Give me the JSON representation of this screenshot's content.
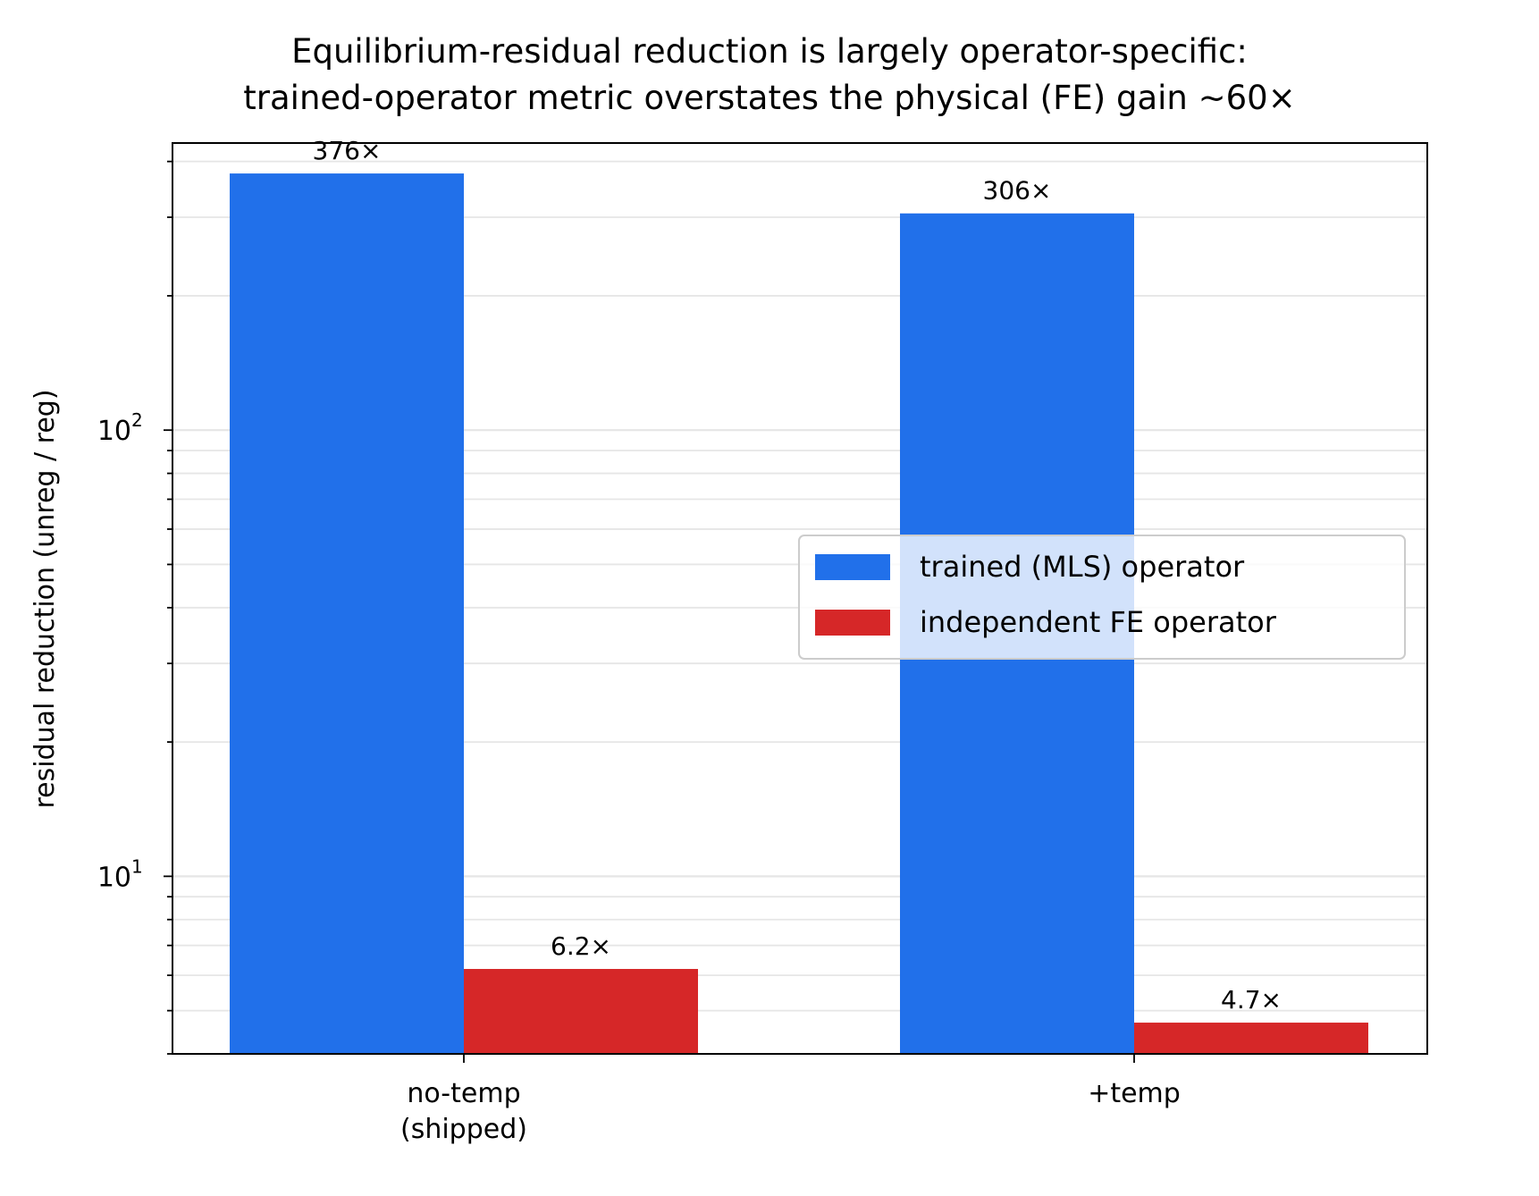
{
  "chart_data": {
    "type": "bar",
    "title_lines": [
      "Equilibrium-residual reduction is largely operator-specific:",
      "trained-operator metric overstates the physical (FE) gain ~60×"
    ],
    "ylabel": "residual reduction  (unreg / reg)",
    "xlabel": "",
    "yscale": "log",
    "ylim": [
      4,
      440
    ],
    "y_major_ticks": [
      {
        "value": 10,
        "base": "10",
        "exp": "1"
      },
      {
        "value": 100,
        "base": "10",
        "exp": "2"
      }
    ],
    "categories": [
      [
        "no-temp",
        "(shipped)"
      ],
      [
        "+temp"
      ]
    ],
    "series": [
      {
        "name": "trained (MLS) operator",
        "color": "#2170ea",
        "values": [
          376,
          306
        ],
        "labels": [
          "376×",
          "306×"
        ]
      },
      {
        "name": "independent FE operator",
        "color": "#d62728",
        "values": [
          6.2,
          4.7
        ],
        "labels": [
          "6.2×",
          "4.7×"
        ]
      }
    ],
    "grid": {
      "y": "major-and-minor",
      "x": false,
      "color": "#e6e6e6"
    },
    "legend": {
      "placement": "center-right"
    }
  }
}
